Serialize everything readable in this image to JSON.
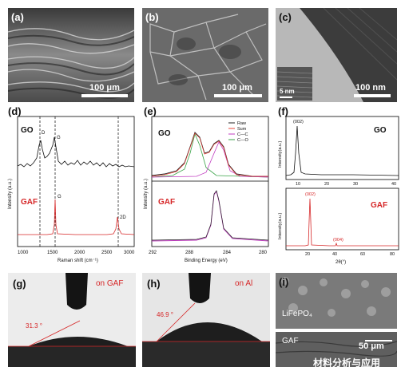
{
  "panels": {
    "a": {
      "label": "(a)",
      "scale": "100 μm"
    },
    "b": {
      "label": "(b)",
      "scale": "100 μm"
    },
    "c": {
      "label": "(c)",
      "scale": "100 nm",
      "inset_scale": "5 nm"
    },
    "d": {
      "label": "(d)",
      "top_sample": "GO",
      "bottom_sample": "GAF",
      "peaks_top": [
        "D",
        "G"
      ],
      "peaks_bottom": [
        "G",
        "2D"
      ],
      "ylabel": "Intensity (a.u.)",
      "xlabel": "Raman shift (cm⁻¹)",
      "xticks": [
        "1000",
        "1500",
        "2000",
        "2500",
        "3000"
      ]
    },
    "e": {
      "label": "(e)",
      "top_sample": "GO",
      "bottom_sample": "GAF",
      "legend": [
        "Raw",
        "Sum",
        "C—C",
        "C—O"
      ],
      "ylabel": "Intensity (a.u.)",
      "xlabel": "Binding Energy (eV)",
      "xticks": [
        "292",
        "288",
        "284",
        "280"
      ]
    },
    "f": {
      "label": "(f)",
      "top_sample": "GO",
      "bottom_sample": "GAF",
      "ylabel": "Intensity(a.u.)",
      "xlabel": "2θ(°)",
      "top_peak": "(002)",
      "bottom_peaks": [
        "(002)",
        "(004)"
      ],
      "xticks_top": [
        "10",
        "20",
        "30",
        "40"
      ],
      "xticks_bottom": [
        "20",
        "40",
        "60",
        "80"
      ]
    },
    "g": {
      "label": "(g)",
      "surface": "on GAF",
      "angle": "31.3 °"
    },
    "h": {
      "label": "(h)",
      "surface": "on Al",
      "angle": "46.9 °"
    },
    "i": {
      "label": "(i)",
      "layer_top": "LiFePO₄",
      "layer_bottom": "GAF",
      "scale": "50 μm"
    }
  },
  "watermark": "材料分析与应用",
  "colors": {
    "go_trace": "#111111",
    "gaf_trace": "#d62728",
    "sum": "#e8443a",
    "cc": "#c03cc0",
    "co": "#3aa348"
  }
}
